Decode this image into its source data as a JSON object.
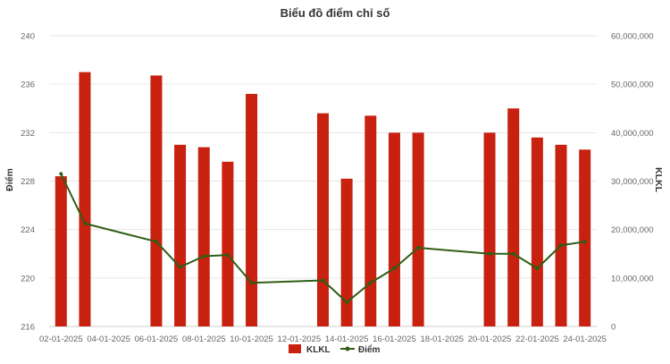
{
  "chart_data": {
    "type": "bar",
    "title": "Biểu đồ điểm chỉ số",
    "y_left_label": "Điểm",
    "y_right_label": "KLKL",
    "y_left_range": [
      216,
      240
    ],
    "y_right_range": [
      0,
      60000000
    ],
    "y_left_ticks": [
      "216",
      "220",
      "224",
      "228",
      "232",
      "236",
      "240"
    ],
    "y_right_ticks": [
      "0",
      "10,000,000",
      "20,000,000",
      "30,000,000",
      "40,000,000",
      "50,000,000",
      "60,000,000"
    ],
    "x_tick_labels": [
      "02-01-2025",
      "04-01-2025",
      "06-01-2025",
      "08-01-2025",
      "10-01-2025",
      "12-01-2025",
      "14-01-2025",
      "16-01-2025",
      "18-01-2025",
      "20-01-2025",
      "22-01-2025",
      "24-01-2025"
    ],
    "grid": true,
    "legend_position": "bottom",
    "categories": [
      "02-01-2025",
      "03-01-2025",
      "06-01-2025",
      "07-01-2025",
      "08-01-2025",
      "09-01-2025",
      "10-01-2025",
      "13-01-2025",
      "14-01-2025",
      "15-01-2025",
      "16-01-2025",
      "17-01-2025",
      "20-01-2025",
      "21-01-2025",
      "22-01-2025",
      "23-01-2025",
      "24-01-2025"
    ],
    "series": [
      {
        "name": "KLKL",
        "type": "bar",
        "axis": "right",
        "color": "#c8210f",
        "values": [
          31000000,
          52500000,
          51800000,
          37500000,
          37000000,
          34000000,
          48000000,
          44000000,
          30500000,
          43500000,
          40000000,
          40000000,
          40000000,
          45000000,
          39000000,
          37500000,
          36500000
        ]
      },
      {
        "name": "Điểm",
        "type": "line",
        "axis": "left",
        "color": "#2e5e16",
        "values": [
          228.6,
          224.5,
          223.0,
          220.9,
          221.8,
          221.9,
          219.6,
          219.8,
          218.0,
          219.6,
          220.8,
          222.5,
          222.0,
          222.0,
          220.8,
          222.7,
          223.0
        ]
      }
    ]
  }
}
